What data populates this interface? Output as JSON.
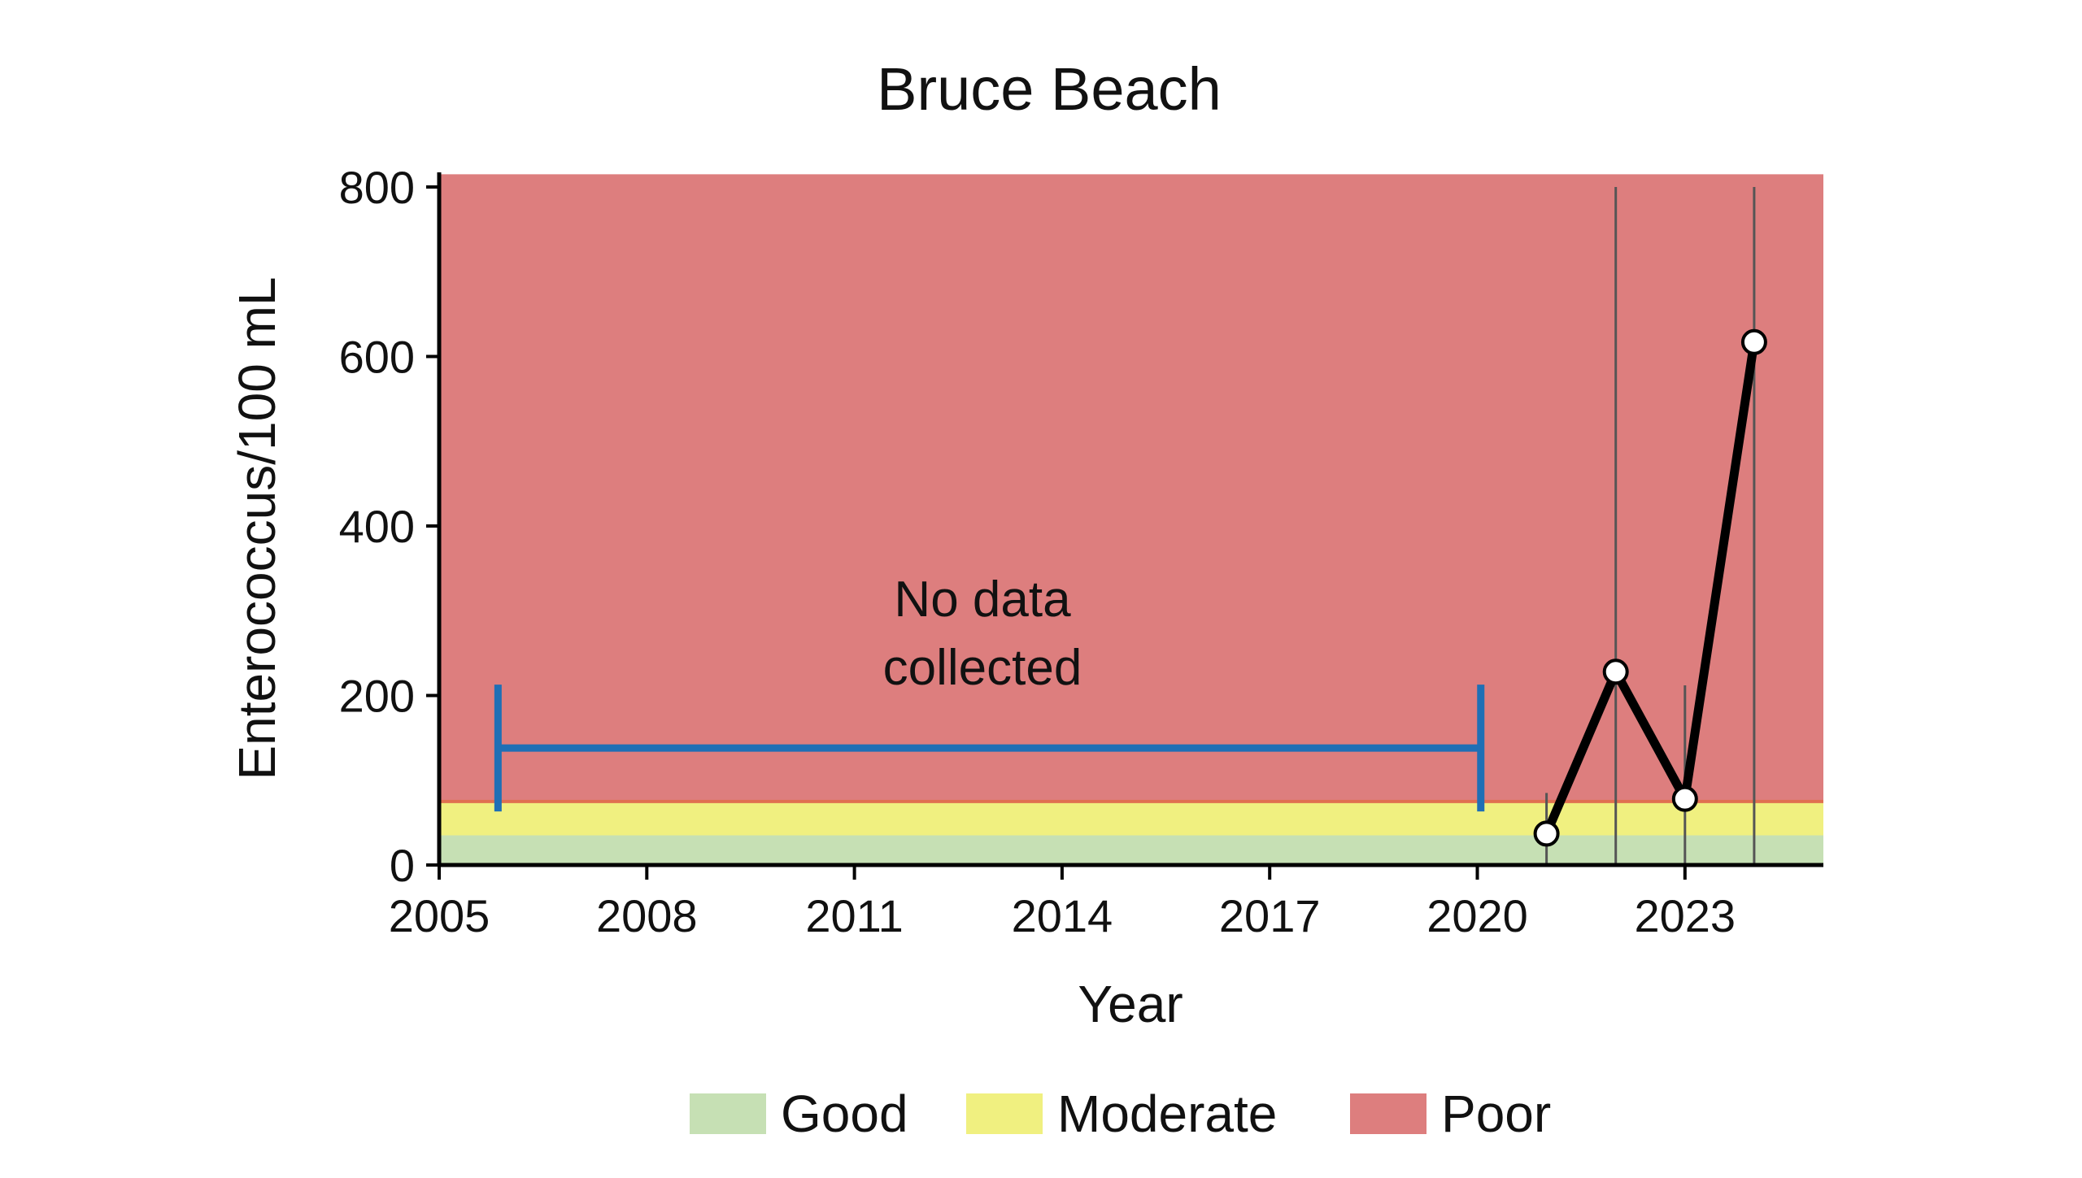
{
  "chart_data": {
    "type": "line",
    "title": "Bruce Beach",
    "xlabel": "Year",
    "ylabel": "Enterococcus/100 mL",
    "xlim": [
      2005,
      2025
    ],
    "ylim": [
      0,
      800
    ],
    "x_ticks": [
      2005,
      2008,
      2011,
      2014,
      2017,
      2020,
      2023
    ],
    "y_ticks": [
      0,
      200,
      400,
      600,
      800
    ],
    "grid": false,
    "bands": [
      {
        "label": "Good",
        "from": 0,
        "to": 35,
        "color": "#c6e0b4"
      },
      {
        "label": "Moderate",
        "from": 35,
        "to": 75,
        "color": "#f0f080"
      },
      {
        "label": "Poor",
        "from": 75,
        "to": 815,
        "color": "#dd7e7e"
      }
    ],
    "series": [
      {
        "points": [
          {
            "x": 2021,
            "y": 37
          },
          {
            "x": 2022,
            "y": 228
          },
          {
            "x": 2023,
            "y": 78
          },
          {
            "x": 2024,
            "y": 617
          }
        ],
        "error_bars": [
          {
            "x": 2021,
            "low": 0,
            "high": 85
          },
          {
            "x": 2022,
            "low": 0,
            "high": 800
          },
          {
            "x": 2023,
            "low": 0,
            "high": 212
          },
          {
            "x": 2024,
            "low": 0,
            "high": 800
          }
        ],
        "color": "#000000"
      }
    ],
    "gap_annotation": {
      "text_line1": "No data",
      "text_line2": "collected",
      "x_start": 2005.85,
      "x_end": 2020.05,
      "y": 138,
      "color": "#1f6fb5"
    },
    "legend": {
      "placement": "bottom-center",
      "entries": [
        {
          "label": "Good",
          "color": "#c6e0b4"
        },
        {
          "label": "Moderate",
          "color": "#f0f080"
        },
        {
          "label": "Poor",
          "color": "#dd7e7e"
        }
      ]
    }
  }
}
